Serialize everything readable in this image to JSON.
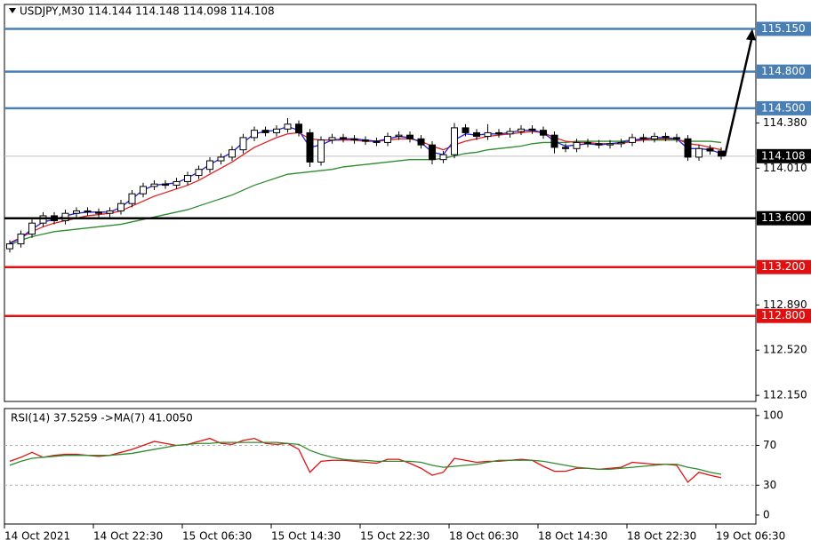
{
  "chart_data": [
    {
      "type": "candlestick",
      "title": "USDJPY,M30  114.144 114.148 114.098 114.108",
      "categories": [
        "14 Oct 2021",
        null,
        null,
        null,
        null,
        null,
        null,
        null,
        "14 Oct 22:30",
        null,
        null,
        null,
        null,
        null,
        null,
        null,
        "15 Oct 06:30",
        null,
        null,
        null,
        null,
        null,
        null,
        null,
        "15 Oct 14:30",
        null,
        null,
        null,
        null,
        null,
        null,
        null,
        "15 Oct 22:30",
        null,
        null,
        null,
        null,
        null,
        null,
        null,
        "18 Oct 06:30",
        null,
        null,
        null,
        null,
        null,
        null,
        null,
        "18 Oct 14:30",
        null,
        null,
        null,
        null,
        null,
        null,
        null,
        "18 Oct 22:30",
        null,
        null,
        null,
        null,
        null,
        null,
        null,
        "19 Oct 06:30"
      ],
      "open": [
        113.35,
        113.39,
        113.47,
        113.56,
        113.62,
        113.58,
        113.64,
        113.66,
        113.65,
        113.64,
        113.66,
        113.72,
        113.8,
        113.86,
        113.88,
        113.87,
        113.9,
        113.95,
        114.0,
        114.07,
        114.1,
        114.16,
        114.26,
        114.32,
        114.3,
        114.33,
        114.37,
        114.3,
        114.06,
        114.24,
        114.26,
        114.25,
        114.24,
        114.23,
        114.22,
        114.27,
        114.28,
        114.25,
        114.2,
        114.08,
        114.12,
        114.34,
        114.3,
        114.27,
        114.3,
        114.29,
        114.31,
        114.33,
        114.32,
        114.28,
        114.18,
        114.17,
        114.22,
        114.21,
        114.2,
        114.21,
        114.22,
        114.26,
        114.25,
        114.27,
        114.26,
        114.25,
        114.1,
        114.17,
        114.15
      ],
      "high": [
        113.42,
        113.5,
        113.59,
        113.65,
        113.65,
        113.67,
        113.69,
        113.69,
        113.68,
        113.69,
        113.75,
        113.83,
        113.89,
        113.91,
        113.91,
        113.93,
        113.98,
        114.03,
        114.1,
        114.13,
        114.19,
        114.29,
        114.35,
        114.35,
        114.36,
        114.42,
        114.4,
        114.33,
        114.27,
        114.29,
        114.29,
        114.28,
        114.27,
        114.26,
        114.3,
        114.31,
        114.31,
        114.28,
        114.23,
        114.15,
        114.38,
        114.37,
        114.33,
        114.37,
        114.33,
        114.34,
        114.36,
        114.36,
        114.35,
        114.31,
        114.21,
        114.25,
        114.25,
        114.24,
        114.24,
        114.25,
        114.29,
        114.29,
        114.3,
        114.3,
        114.29,
        114.28,
        114.2,
        114.2,
        114.18
      ],
      "low": [
        113.32,
        113.36,
        113.44,
        113.53,
        113.55,
        113.55,
        113.61,
        113.62,
        113.61,
        113.61,
        113.63,
        113.69,
        113.77,
        113.83,
        113.84,
        113.84,
        113.87,
        113.92,
        113.97,
        114.04,
        114.07,
        114.13,
        114.23,
        114.27,
        114.27,
        114.3,
        114.27,
        114.02,
        114.03,
        114.21,
        114.22,
        114.21,
        114.2,
        114.19,
        114.19,
        114.24,
        114.22,
        114.17,
        114.04,
        114.05,
        114.09,
        114.27,
        114.24,
        114.24,
        114.26,
        114.26,
        114.28,
        114.29,
        114.25,
        114.13,
        114.14,
        114.14,
        114.18,
        114.17,
        114.17,
        114.18,
        114.19,
        114.22,
        114.22,
        114.23,
        114.22,
        114.07,
        114.07,
        114.12,
        114.08
      ],
      "close": [
        113.39,
        113.47,
        113.56,
        113.62,
        113.58,
        113.64,
        113.66,
        113.65,
        113.64,
        113.66,
        113.72,
        113.8,
        113.86,
        113.88,
        113.87,
        113.9,
        113.95,
        114.0,
        114.07,
        114.1,
        114.16,
        114.26,
        114.32,
        114.3,
        114.33,
        114.37,
        114.3,
        114.06,
        114.24,
        114.26,
        114.25,
        114.24,
        114.23,
        114.22,
        114.27,
        114.28,
        114.25,
        114.2,
        114.08,
        114.12,
        114.34,
        114.3,
        114.27,
        114.3,
        114.29,
        114.31,
        114.33,
        114.32,
        114.28,
        114.18,
        114.17,
        114.22,
        114.21,
        114.2,
        114.21,
        114.22,
        114.26,
        114.25,
        114.27,
        114.26,
        114.25,
        114.1,
        114.17,
        114.15,
        114.108
      ],
      "series": [
        {
          "color": "#2e8b2e",
          "values": [
            113.38,
            113.42,
            113.45,
            113.47,
            113.49,
            113.5,
            113.51,
            113.52,
            113.53,
            113.54,
            113.55,
            113.57,
            113.59,
            113.61,
            113.63,
            113.65,
            113.67,
            113.7,
            113.73,
            113.76,
            113.79,
            113.83,
            113.87,
            113.9,
            113.93,
            113.96,
            113.97,
            113.98,
            113.99,
            114.0,
            114.02,
            114.03,
            114.04,
            114.05,
            114.06,
            114.07,
            114.08,
            114.08,
            114.08,
            114.09,
            114.11,
            114.13,
            114.14,
            114.16,
            114.17,
            114.18,
            114.19,
            114.21,
            114.22,
            114.22,
            114.22,
            114.23,
            114.23,
            114.23,
            114.23,
            114.23,
            114.24,
            114.24,
            114.24,
            114.24,
            114.24,
            114.23,
            114.23,
            114.23,
            114.22
          ]
        },
        {
          "color": "#e02020",
          "values": [
            113.4,
            113.44,
            113.49,
            113.53,
            113.56,
            113.58,
            113.6,
            113.62,
            113.63,
            113.64,
            113.66,
            113.7,
            113.74,
            113.78,
            113.81,
            113.84,
            113.87,
            113.91,
            113.96,
            114.01,
            114.06,
            114.12,
            114.18,
            114.22,
            114.26,
            114.29,
            114.3,
            114.25,
            114.24,
            114.24,
            114.24,
            114.24,
            114.23,
            114.23,
            114.24,
            114.25,
            114.25,
            114.23,
            114.19,
            114.16,
            114.2,
            114.23,
            114.25,
            114.27,
            114.28,
            114.29,
            114.3,
            114.31,
            114.3,
            114.26,
            114.23,
            114.22,
            114.22,
            114.21,
            114.21,
            114.21,
            114.23,
            114.24,
            114.25,
            114.25,
            114.25,
            114.21,
            114.2,
            114.18,
            114.16
          ]
        },
        {
          "color": "#2020e0",
          "values": [
            113.39,
            113.44,
            113.51,
            113.57,
            113.59,
            113.62,
            113.64,
            113.65,
            113.65,
            113.65,
            113.69,
            113.76,
            113.83,
            113.87,
            113.88,
            113.89,
            113.93,
            113.98,
            114.04,
            114.09,
            114.14,
            114.22,
            114.29,
            114.31,
            114.32,
            114.35,
            114.32,
            114.18,
            114.2,
            114.24,
            114.25,
            114.25,
            114.24,
            114.23,
            114.25,
            114.27,
            114.26,
            114.22,
            114.14,
            114.12,
            114.24,
            114.29,
            114.28,
            114.29,
            114.29,
            114.3,
            114.32,
            114.32,
            114.3,
            114.23,
            114.19,
            114.2,
            114.21,
            114.2,
            114.21,
            114.22,
            114.24,
            114.25,
            114.26,
            114.26,
            114.25,
            114.17,
            114.17,
            114.16,
            114.13
          ]
        }
      ],
      "levels": [
        {
          "value": 115.15,
          "label": "115.150",
          "color": "#4a7fb5"
        },
        {
          "value": 114.8,
          "label": "114.800",
          "color": "#4a7fb5"
        },
        {
          "value": 114.5,
          "label": "114.500",
          "color": "#4a7fb5"
        },
        {
          "value": 113.6,
          "label": "113.600",
          "color": "#000000"
        },
        {
          "value": 113.2,
          "label": "113.200",
          "color": "#e01010"
        },
        {
          "value": 112.8,
          "label": "112.800",
          "color": "#e01010"
        }
      ],
      "current": {
        "value": 114.108,
        "label": "114.108"
      },
      "ylim": [
        112.1,
        115.35
      ],
      "yticks": [
        {
          "value": 112.15,
          "label": "112.150"
        },
        {
          "value": 112.52,
          "label": "112.520"
        },
        {
          "value": 112.89,
          "label": "112.890"
        },
        {
          "value": 114.01,
          "label": "114.010"
        },
        {
          "value": 114.38,
          "label": "114.380"
        }
      ]
    },
    {
      "type": "line",
      "title": "RSI(14) 37.5259  ->MA(7) 41.0050",
      "series": [
        {
          "color": "#e01010",
          "values": [
            54,
            58,
            63,
            58,
            60,
            61,
            61,
            60,
            59,
            60,
            63,
            66,
            70,
            74,
            72,
            70,
            71,
            74,
            77,
            72,
            71,
            75,
            77,
            72,
            71,
            72,
            66,
            43,
            54,
            55,
            55,
            54,
            53,
            52,
            56,
            56,
            52,
            47,
            40,
            43,
            57,
            55,
            53,
            54,
            54,
            55,
            56,
            55,
            49,
            44,
            44,
            47,
            47,
            46,
            47,
            48,
            53,
            52,
            51,
            51,
            50,
            33,
            43,
            40,
            37.5259
          ]
        },
        {
          "color": "#2e8b2e",
          "values": [
            50,
            54,
            57,
            58,
            59,
            60,
            60,
            60,
            60,
            60,
            61,
            62,
            64,
            66,
            68,
            70,
            71,
            72,
            72,
            73,
            73,
            73,
            73,
            73,
            73,
            72,
            71,
            65,
            61,
            58,
            56,
            55,
            55,
            54,
            54,
            54,
            54,
            53,
            50,
            48,
            49,
            50,
            51,
            53,
            55,
            55,
            55,
            55,
            54,
            52,
            50,
            48,
            47,
            46,
            46,
            47,
            48,
            49,
            50,
            51,
            51,
            48,
            46,
            43,
            41.005
          ]
        }
      ],
      "levels": [
        30,
        70
      ],
      "ylim": [
        -9,
        107
      ],
      "yticks": [
        0,
        30,
        70,
        100
      ]
    }
  ]
}
